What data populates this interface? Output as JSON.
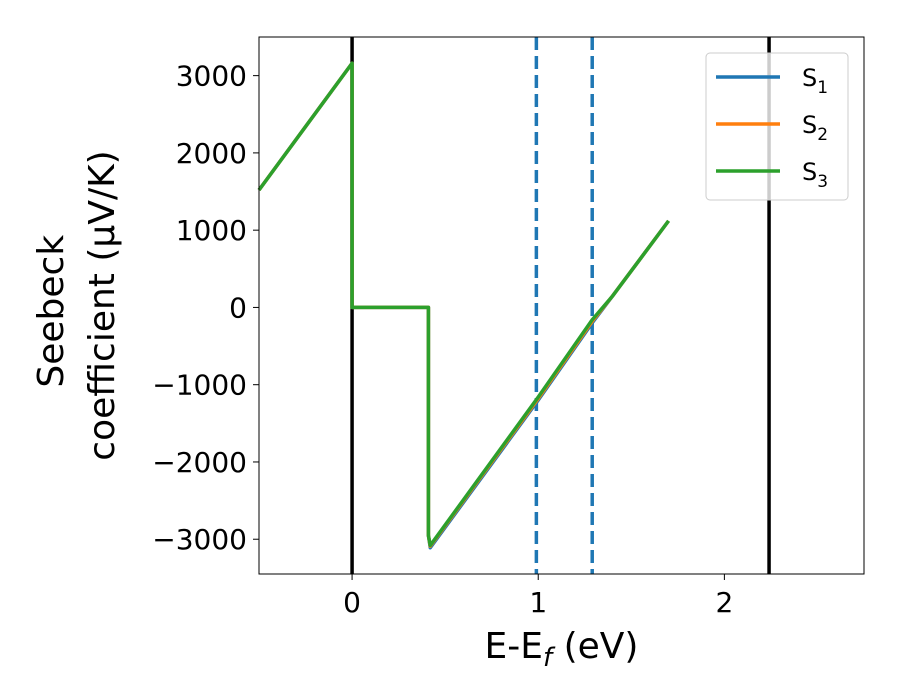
{
  "chart_data": {
    "type": "line",
    "xlabel": "E-E_f (eV)",
    "xlabel_parts": {
      "main": "E-E",
      "sub": "f",
      "tail": " (eV)"
    },
    "ylabel_lines": [
      "Seebeck",
      "coefficient  (μV/K)"
    ],
    "xlim": [
      -0.5,
      2.75
    ],
    "ylim": [
      -3450,
      3500
    ],
    "xticks": [
      0,
      1,
      2
    ],
    "xtick_labels": [
      "0",
      "1",
      "2"
    ],
    "yticks": [
      3000,
      2000,
      1000,
      0,
      -1000,
      -2000,
      -3000
    ],
    "ytick_labels": [
      "3000",
      "2000",
      "1000",
      "0",
      "−1000",
      "−2000",
      "−3000"
    ],
    "grid": false,
    "legend_position": "top-right",
    "series": [
      {
        "name": "S1",
        "name_main": "S",
        "name_sub": "1",
        "color": "#1f77b4",
        "x": [
          -0.5,
          0.0,
          0.0,
          0.41,
          0.41,
          0.42,
          1.0,
          1.29,
          1.4,
          1.7
        ],
        "y": [
          1520,
          3160,
          0,
          0,
          -2950,
          -3110,
          -1200,
          -200,
          150,
          1120
        ]
      },
      {
        "name": "S2",
        "name_main": "S",
        "name_sub": "2",
        "color": "#ff7f0e",
        "x": [
          -0.5,
          0.0,
          0.0,
          0.41,
          0.41,
          0.42,
          1.0,
          1.29,
          1.4,
          1.7
        ],
        "y": [
          1520,
          3160,
          0,
          0,
          -2950,
          -3090,
          -1180,
          -180,
          150,
          1120
        ]
      },
      {
        "name": "S3",
        "name_main": "S",
        "name_sub": "3",
        "color": "#2ca02c",
        "x": [
          -0.5,
          0.0,
          0.0,
          0.41,
          0.41,
          0.42,
          1.0,
          1.29,
          1.4,
          1.7
        ],
        "y": [
          1520,
          3160,
          0,
          0,
          -2950,
          -3080,
          -1160,
          -160,
          150,
          1120
        ]
      }
    ],
    "vlines": [
      {
        "x": 0.0,
        "style": "solid",
        "color": "#000000"
      },
      {
        "x": 0.99,
        "style": "dashed",
        "color": "#1f77b4"
      },
      {
        "x": 1.29,
        "style": "dashed",
        "color": "#1f77b4"
      },
      {
        "x": 2.24,
        "style": "solid",
        "color": "#000000"
      }
    ]
  }
}
